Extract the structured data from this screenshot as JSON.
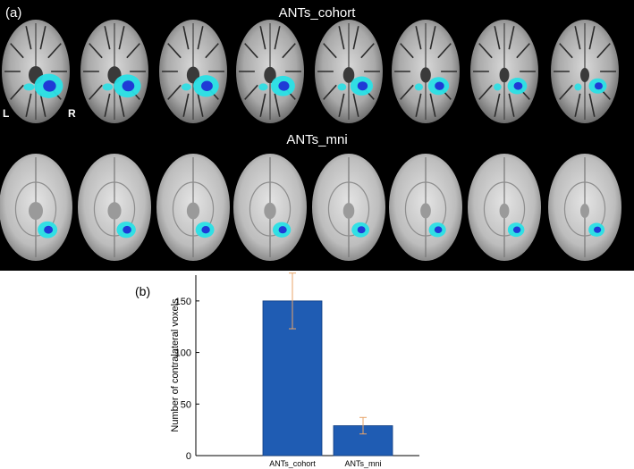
{
  "panel_a": {
    "label": "(a)",
    "row1_title": "ANTs_cohort",
    "row2_title": "ANTs_mni",
    "orient_left": "L",
    "orient_right": "R",
    "slices_per_row": 8,
    "colors": {
      "background": "#000000",
      "overlay_light": "#29e0e6",
      "overlay_dark": "#1f3ad6"
    }
  },
  "panel_b": {
    "label": "(b)"
  },
  "chart_data": {
    "type": "bar",
    "categories": [
      "ANTs_cohort",
      "ANTs_mni"
    ],
    "values": [
      150,
      29
    ],
    "errors": [
      27,
      8
    ],
    "ylabel": "Number of contralateral voxels",
    "ylim": [
      0,
      175
    ],
    "yticks": [
      0,
      50,
      100,
      150
    ],
    "bar_color": "#1f5cb3",
    "error_color": "#e8a46a"
  }
}
